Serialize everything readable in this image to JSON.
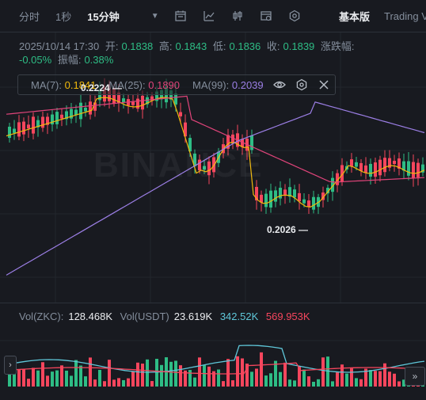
{
  "toolbar": {
    "intervals": [
      "分时",
      "1秒",
      "15分钟"
    ],
    "active_interval": "15分钟",
    "basic_label": "基本版",
    "trading_label": "Trading V"
  },
  "ohlc": {
    "datetime": "2025/10/14 17:30",
    "open_label": "开:",
    "open": "0.1838",
    "high_label": "高:",
    "high": "0.1843",
    "low_label": "低:",
    "low": "0.1836",
    "close_label": "收:",
    "close": "0.1839",
    "change_label": "涨跌幅:",
    "change": "-0.05%",
    "amplitude_label": "振幅:",
    "amplitude": "0.38%"
  },
  "ma": {
    "ma7_label": "MA(7):",
    "ma7": "0.1841",
    "ma7_color": "#f0b90b",
    "ma25_label": "MA(25):",
    "ma25": "0.1890",
    "ma25_color": "#e0447a",
    "ma99_label": "MA(99):",
    "ma99": "0.2039",
    "ma99_color": "#9c7fe6"
  },
  "price_labels": {
    "high": "0.2224",
    "low": "0.2026"
  },
  "volume": {
    "vol_zkc_label": "Vol(ZKC):",
    "vol_zkc": "128.468K",
    "vol_usdt_label": "Vol(USDT)",
    "vol_usdt": "23.619K",
    "ma_a": "342.52K",
    "ma_a_color": "#5fc7d9",
    "ma_b": "569.953K",
    "ma_b_color": "#f6465d"
  },
  "watermark": "BINANCE",
  "colors": {
    "up": "#2ebd85",
    "down": "#f6465d",
    "bg": "#181a20"
  }
}
